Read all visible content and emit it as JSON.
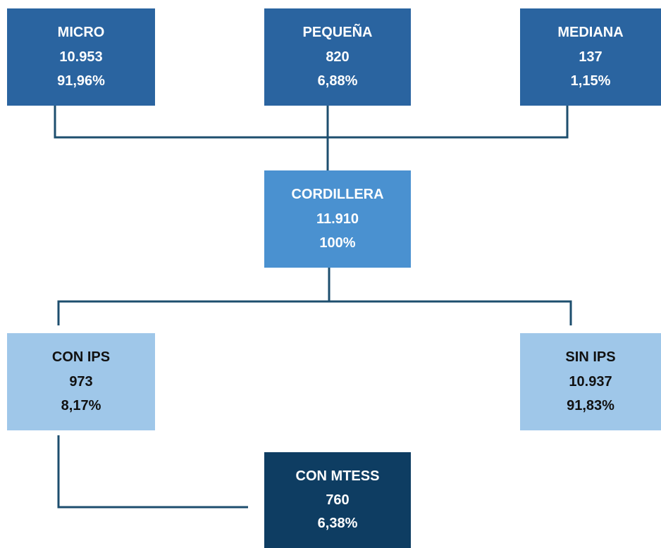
{
  "nodes": [
    {
      "label": "MICRO",
      "count": "10.953",
      "percent": "91,96%"
    },
    {
      "label": "PEQUEÑA",
      "count": "820",
      "percent": "6,88%"
    },
    {
      "label": "MEDIANA",
      "count": "137",
      "percent": "1,15%"
    },
    {
      "label": "CORDILLERA",
      "count": "11.910",
      "percent": "100%"
    },
    {
      "label": "CON IPS",
      "count": "973",
      "percent": "8,17%"
    },
    {
      "label": "SIN IPS",
      "count": "10.937",
      "percent": "91,83%"
    },
    {
      "label": "CON MTESS",
      "count": "760",
      "percent": "6,38%"
    }
  ]
}
